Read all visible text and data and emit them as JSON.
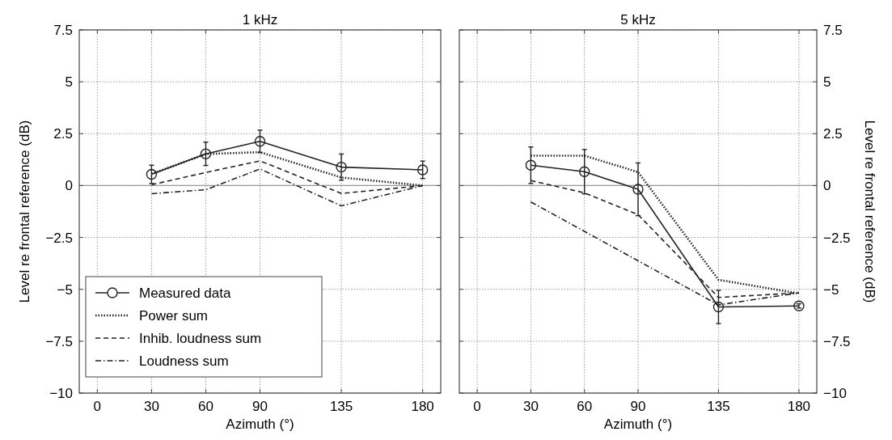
{
  "chart_data": [
    {
      "type": "line",
      "title": "1 kHz",
      "xlabel": "Azimuth (°)",
      "ylabel": "Level re frontal reference (dB)",
      "xlim": [
        -10,
        190
      ],
      "xticks": [
        0,
        30,
        60,
        90,
        135,
        180
      ],
      "ylim": [
        -10,
        7.5
      ],
      "yticks": [
        {
          "value": -10,
          "label": "−10"
        },
        {
          "value": -7.5,
          "label": "−7.5"
        },
        {
          "value": -5,
          "label": "−5"
        },
        {
          "value": -2.5,
          "label": "−2.5"
        },
        0,
        2.5,
        5,
        7.5
      ],
      "grid": true,
      "legend": "bottom left",
      "ref_lines": [
        {
          "axis": "y",
          "value": 0,
          "color": "#999999",
          "line_style": "solid"
        }
      ],
      "series": [
        {
          "name": "Measured data",
          "color": "#222222",
          "x": [
            30,
            60,
            90,
            135,
            180
          ],
          "values": [
            0.54,
            1.53,
            2.13,
            0.89,
            0.76
          ],
          "errors": [
            0.44,
            0.56,
            0.54,
            0.63,
            0.42
          ],
          "marker": "circle",
          "line_style": "solid"
        },
        {
          "name": "Power sum",
          "color": "#222222",
          "x": [
            30,
            60,
            90,
            135,
            180
          ],
          "values": [
            0.56,
            1.52,
            1.61,
            0.39,
            0
          ],
          "marker": "none",
          "line_style": "dotted"
        },
        {
          "name": "Inhib. loudness sum",
          "color": "#222222",
          "x": [
            30,
            60,
            90,
            135,
            180
          ],
          "values": [
            0.04,
            0.63,
            1.19,
            -0.38,
            0
          ],
          "marker": "none",
          "line_style": "dashed"
        },
        {
          "name": "Loudness sum",
          "color": "#222222",
          "x": [
            30,
            60,
            90,
            135,
            180
          ],
          "values": [
            -0.39,
            -0.2,
            0.8,
            -0.98,
            0
          ],
          "marker": "none",
          "line_style": "dashdot"
        }
      ]
    },
    {
      "type": "line",
      "title": "5 kHz",
      "xlabel": "Azimuth (°)",
      "y2label": "Level re frontal reference (dB)",
      "xlim": [
        -10,
        190
      ],
      "xticks": [
        0,
        30,
        60,
        90,
        135,
        180
      ],
      "y2lim": [
        -10,
        7.5
      ],
      "y2ticks": [
        {
          "value": -10,
          "label": "−10"
        },
        {
          "value": -7.5,
          "label": "−7.5"
        },
        {
          "value": -5,
          "label": "−5"
        },
        {
          "value": -2.5,
          "label": "−2.5"
        },
        0,
        2.5,
        5,
        7.5
      ],
      "grid": true,
      "ref_lines": [
        {
          "axis": "y2",
          "value": 0,
          "color": "#999999",
          "line_style": "solid"
        }
      ],
      "series": [
        {
          "color": "#222222",
          "axis": "y2",
          "x": [
            30,
            60,
            90,
            135,
            180
          ],
          "values": [
            0.98,
            0.67,
            -0.18,
            -5.85,
            -5.8
          ],
          "errors": [
            0.88,
            1.07,
            1.27,
            0.8,
            0.1
          ],
          "marker": "circle",
          "line_style": "solid"
        },
        {
          "color": "#222222",
          "axis": "y2",
          "x": [
            30,
            60,
            90,
            135,
            180
          ],
          "values": [
            1.44,
            1.44,
            0.65,
            -4.54,
            -5.2
          ],
          "marker": "none",
          "line_style": "dotted"
        },
        {
          "color": "#222222",
          "axis": "y2",
          "x": [
            30,
            60,
            90,
            135,
            180
          ],
          "values": [
            0.24,
            -0.35,
            -1.4,
            -5.39,
            -5.17
          ],
          "marker": "none",
          "line_style": "dashed"
        },
        {
          "color": "#222222",
          "axis": "y2",
          "x": [
            30,
            135,
            180
          ],
          "values": [
            -0.79,
            -5.75,
            -5.17
          ],
          "marker": "none",
          "line_style": "dashdot"
        }
      ]
    }
  ]
}
